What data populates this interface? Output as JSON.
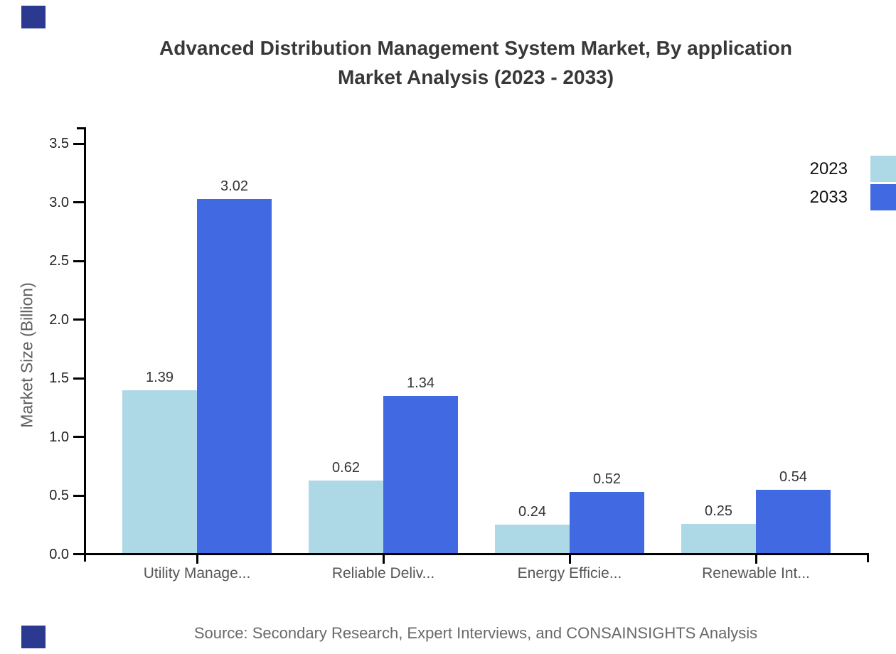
{
  "page": {
    "title_line1": "Advanced Distribution Management System Market, By application",
    "title_line2": "Market Analysis (2023 - 2033)",
    "source": "Source: Secondary Research, Expert Interviews, and CONSAINSIGHTS Analysis"
  },
  "colors": {
    "series_2023": "#ADD8E6",
    "series_2033": "#4169E1",
    "axis": "#000000",
    "brand_square": "#2b3990",
    "title_text": "#383838",
    "muted_text": "#5f5f5f"
  },
  "chart_data": {
    "type": "bar",
    "title": "Advanced Distribution Management System Market, By application Market Analysis (2023 - 2033)",
    "categories": [
      "Utility Manage...",
      "Reliable Deliv...",
      "Energy Efficie...",
      "Renewable Int..."
    ],
    "series": [
      {
        "name": "2023",
        "color": "#ADD8E6",
        "values": [
          1.39,
          0.62,
          0.24,
          0.25
        ]
      },
      {
        "name": "2033",
        "color": "#4169E1",
        "values": [
          3.02,
          1.34,
          0.52,
          0.54
        ]
      }
    ],
    "value_labels": [
      "1.39",
      "3.02",
      "0.62",
      "1.34",
      "0.24",
      "0.52",
      "0.25",
      "0.54"
    ],
    "xlabel": "",
    "ylabel": "Market Size (Billion)",
    "yticks": [
      0.0,
      0.5,
      1.0,
      1.5,
      2.0,
      2.5,
      3.0,
      3.5
    ],
    "ytick_labels": [
      "0.0",
      "0.5",
      "1.0",
      "1.5",
      "2.0",
      "2.5",
      "3.0",
      "3.5"
    ],
    "ylim": [
      0,
      3.62
    ],
    "grid": false,
    "legend_position": "top-right",
    "source": "Source: Secondary Research, Expert Interviews, and CONSAINSIGHTS Analysis"
  }
}
